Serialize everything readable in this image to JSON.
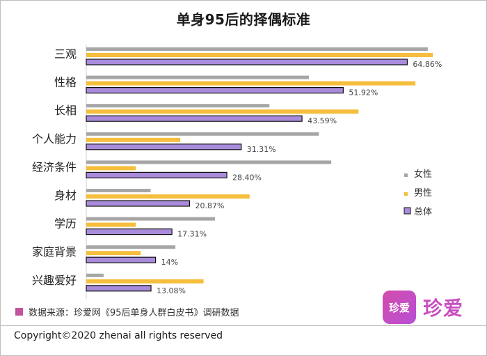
{
  "chart_data": {
    "type": "bar",
    "orientation": "horizontal",
    "title": "单身95后的择偶标准",
    "categories": [
      "三观",
      "性格",
      "长相",
      "个人能力",
      "经济条件",
      "身材",
      "学历",
      "家庭背景",
      "兴趣爱好"
    ],
    "series": [
      {
        "name": "女性",
        "color": "#a6a6a6",
        "values": [
          69.0,
          45.0,
          37.0,
          47.0,
          49.5,
          13.0,
          26.0,
          18.0,
          3.5
        ]
      },
      {
        "name": "男性",
        "color": "#f5be3d",
        "values": [
          70.0,
          66.5,
          55.0,
          19.0,
          10.0,
          33.0,
          10.0,
          11.0,
          23.7
        ]
      },
      {
        "name": "总体",
        "color": "#a98bdb",
        "values": [
          64.86,
          51.92,
          43.59,
          31.31,
          28.4,
          20.87,
          17.31,
          14.0,
          13.08
        ]
      }
    ],
    "data_labels": [
      "64.86%",
      "51.92%",
      "43.59%",
      "31.31%",
      "28.40%",
      "20.87%",
      "17.31%",
      "14%",
      "13.08%"
    ],
    "xlim": [
      0,
      70
    ],
    "grid": false,
    "legend": "right"
  },
  "source_text": "数据来源：珍爱网《95后单身人群白皮书》调研数据",
  "logo": {
    "box_text": "珍爱",
    "wordmark": "珍爱"
  },
  "copyright": "Copyright©2020 zhenai all rights reserved",
  "colors": {
    "accent": "#c0549f"
  }
}
